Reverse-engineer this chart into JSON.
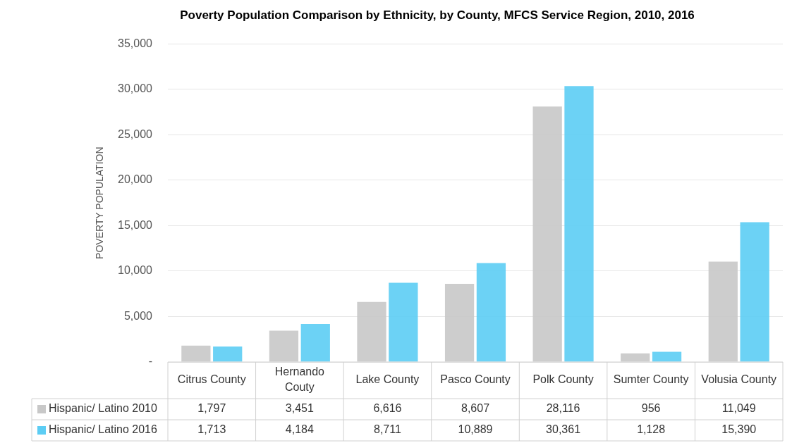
{
  "chart_data": {
    "type": "bar",
    "title": "Poverty Population Comparison by Ethnicity, by County, MFCS Service Region, 2010, 2016",
    "ylabel": "POVERTY POPULATION",
    "categories": [
      "Citrus County",
      "Hernando Couty",
      "Lake County",
      "Pasco County",
      "Polk County",
      "Sumter County",
      "Volusia County"
    ],
    "series": [
      {
        "name": "Hispanic/ Latino 2010",
        "color": "#c8c8c8",
        "values": [
          1797,
          3451,
          6616,
          8607,
          28116,
          956,
          11049
        ],
        "value_labels": [
          "1,797",
          "3,451",
          "6,616",
          "8,607",
          "28,116",
          "956",
          "11,049"
        ]
      },
      {
        "name": "Hispanic/ Latino 2016",
        "color": "#5ccdf4",
        "values": [
          1713,
          4184,
          8711,
          10889,
          30361,
          1128,
          15390
        ],
        "value_labels": [
          "1,713",
          "4,184",
          "8,711",
          "10,889",
          "30,361",
          "1,128",
          "15,390"
        ]
      }
    ],
    "ylim": [
      0,
      35000
    ],
    "yticks": [
      {
        "value": 0,
        "label": "-"
      },
      {
        "value": 5000,
        "label": "5,000"
      },
      {
        "value": 10000,
        "label": "10,000"
      },
      {
        "value": 15000,
        "label": "15,000"
      },
      {
        "value": 20000,
        "label": "20,000"
      },
      {
        "value": 25000,
        "label": "25,000"
      },
      {
        "value": 30000,
        "label": "30,000"
      },
      {
        "value": 35000,
        "label": "35,000"
      }
    ],
    "grid": "y",
    "legend": "bottom"
  }
}
